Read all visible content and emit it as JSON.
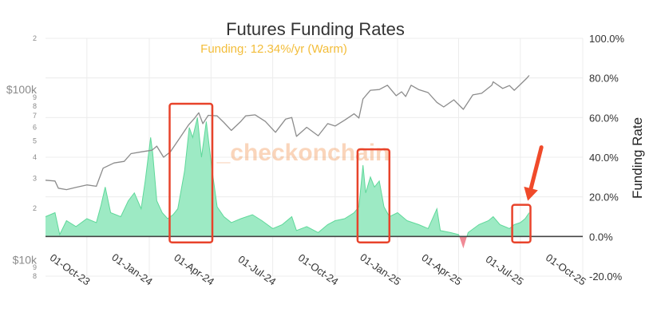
{
  "chart_data": {
    "type": "line",
    "title": "Futures Funding Rates",
    "subtitle": "Funding: 12.34%/yr (Warm)",
    "watermark": "_checkonchain",
    "y2label": "Funding Rate",
    "x_ticks": [
      "01-Oct-23",
      "01-Jan-24",
      "01-Apr-24",
      "01-Jul-24",
      "01-Oct-24",
      "01-Jan-25",
      "01-Apr-25",
      "01-Jul-25",
      "01-Oct-25"
    ],
    "xlim": [
      "2023-08-01",
      "2025-10-01"
    ],
    "y_left": {
      "scale": "log",
      "range": [
        8000,
        200000
      ],
      "major_ticks": [
        {
          "value": 100000,
          "label": "$100k"
        },
        {
          "value": 10000,
          "label": "$10k"
        }
      ],
      "minor_ticks": [
        {
          "value": 200000,
          "label": "2"
        },
        {
          "value": 90000,
          "label": "9"
        },
        {
          "value": 80000,
          "label": "8"
        },
        {
          "value": 70000,
          "label": "7"
        },
        {
          "value": 60000,
          "label": "6"
        },
        {
          "value": 50000,
          "label": "5"
        },
        {
          "value": 40000,
          "label": "4"
        },
        {
          "value": 30000,
          "label": "3"
        },
        {
          "value": 20000,
          "label": "2"
        },
        {
          "value": 9000,
          "label": "9"
        },
        {
          "value": 8000,
          "label": "8"
        }
      ]
    },
    "y_right": {
      "range": [
        -20,
        100
      ],
      "ticks": [
        {
          "value": 100,
          "label": "100.0%"
        },
        {
          "value": 80,
          "label": "80.0%"
        },
        {
          "value": 60,
          "label": "60.0%"
        },
        {
          "value": 40,
          "label": "40.0%"
        },
        {
          "value": 20,
          "label": "20.0%"
        },
        {
          "value": 0,
          "label": "0.0%"
        },
        {
          "value": -20,
          "label": "-20.0%"
        }
      ]
    },
    "series": [
      {
        "type": "line",
        "axis": "left",
        "color": "#8c8c8c",
        "points": [
          [
            "2023-08-01",
            29300
          ],
          [
            "2023-08-15",
            29000
          ],
          [
            "2023-08-20",
            26300
          ],
          [
            "2023-09-01",
            25800
          ],
          [
            "2023-09-15",
            26600
          ],
          [
            "2023-10-01",
            27500
          ],
          [
            "2023-10-15",
            27000
          ],
          [
            "2023-10-25",
            34500
          ],
          [
            "2023-11-10",
            37000
          ],
          [
            "2023-11-25",
            37800
          ],
          [
            "2023-12-05",
            42000
          ],
          [
            "2023-12-20",
            43000
          ],
          [
            "2024-01-05",
            44000
          ],
          [
            "2024-01-12",
            46500
          ],
          [
            "2024-01-22",
            40000
          ],
          [
            "2024-02-01",
            43000
          ],
          [
            "2024-02-15",
            52000
          ],
          [
            "2024-02-28",
            62000
          ],
          [
            "2024-03-08",
            68000
          ],
          [
            "2024-03-14",
            73000
          ],
          [
            "2024-03-20",
            63000
          ],
          [
            "2024-03-28",
            70500
          ],
          [
            "2024-04-10",
            70000
          ],
          [
            "2024-04-20",
            64000
          ],
          [
            "2024-05-01",
            57500
          ],
          [
            "2024-05-15",
            65000
          ],
          [
            "2024-05-22",
            70000
          ],
          [
            "2024-06-05",
            71000
          ],
          [
            "2024-06-20",
            65000
          ],
          [
            "2024-07-05",
            56000
          ],
          [
            "2024-07-20",
            67000
          ],
          [
            "2024-07-29",
            68500
          ],
          [
            "2024-08-05",
            53000
          ],
          [
            "2024-08-20",
            60000
          ],
          [
            "2024-09-06",
            53500
          ],
          [
            "2024-09-20",
            63000
          ],
          [
            "2024-10-01",
            61000
          ],
          [
            "2024-10-15",
            66000
          ],
          [
            "2024-10-29",
            72000
          ],
          [
            "2024-11-05",
            68000
          ],
          [
            "2024-11-11",
            88000
          ],
          [
            "2024-11-22",
            99000
          ],
          [
            "2024-12-05",
            100000
          ],
          [
            "2024-12-17",
            106000
          ],
          [
            "2024-12-30",
            92000
          ],
          [
            "2025-01-07",
            97000
          ],
          [
            "2025-01-13",
            91000
          ],
          [
            "2025-01-21",
            106000
          ],
          [
            "2025-02-01",
            100000
          ],
          [
            "2025-02-15",
            96000
          ],
          [
            "2025-02-28",
            84000
          ],
          [
            "2025-03-10",
            79000
          ],
          [
            "2025-03-25",
            87000
          ],
          [
            "2025-04-08",
            76500
          ],
          [
            "2025-04-22",
            93000
          ],
          [
            "2025-05-05",
            95000
          ],
          [
            "2025-05-20",
            106000
          ],
          [
            "2025-05-22",
            111000
          ],
          [
            "2025-06-05",
            101500
          ],
          [
            "2025-06-15",
            105500
          ],
          [
            "2025-06-22",
            99000
          ],
          [
            "2025-07-01",
            107000
          ],
          [
            "2025-07-10",
            116000
          ],
          [
            "2025-07-14",
            121000
          ]
        ]
      },
      {
        "type": "area",
        "axis": "right",
        "color": "#5fd89a",
        "fill": "#9deac4",
        "negative_color": "#f08a96",
        "points": [
          [
            "2023-08-01",
            10
          ],
          [
            "2023-08-15",
            12
          ],
          [
            "2023-08-22",
            1
          ],
          [
            "2023-09-01",
            8
          ],
          [
            "2023-09-15",
            5
          ],
          [
            "2023-10-01",
            9
          ],
          [
            "2023-10-15",
            7
          ],
          [
            "2023-10-22",
            16
          ],
          [
            "2023-10-28",
            25
          ],
          [
            "2023-11-05",
            12
          ],
          [
            "2023-11-20",
            10
          ],
          [
            "2023-12-01",
            18
          ],
          [
            "2023-12-10",
            22
          ],
          [
            "2023-12-20",
            14
          ],
          [
            "2023-12-26",
            28
          ],
          [
            "2024-01-03",
            50
          ],
          [
            "2024-01-06",
            42
          ],
          [
            "2024-01-12",
            18
          ],
          [
            "2024-01-20",
            12
          ],
          [
            "2024-01-28",
            9
          ],
          [
            "2024-02-05",
            11
          ],
          [
            "2024-02-12",
            14
          ],
          [
            "2024-02-22",
            33
          ],
          [
            "2024-02-29",
            55
          ],
          [
            "2024-03-05",
            50
          ],
          [
            "2024-03-12",
            60
          ],
          [
            "2024-03-18",
            40
          ],
          [
            "2024-03-25",
            58
          ],
          [
            "2024-04-02",
            35
          ],
          [
            "2024-04-10",
            15
          ],
          [
            "2024-04-20",
            10
          ],
          [
            "2024-05-01",
            7
          ],
          [
            "2024-05-15",
            9
          ],
          [
            "2024-06-01",
            11
          ],
          [
            "2024-06-15",
            8
          ],
          [
            "2024-07-01",
            4
          ],
          [
            "2024-07-15",
            6
          ],
          [
            "2024-07-29",
            10
          ],
          [
            "2024-08-05",
            3
          ],
          [
            "2024-08-20",
            5
          ],
          [
            "2024-09-06",
            2
          ],
          [
            "2024-09-20",
            6
          ],
          [
            "2024-10-01",
            8
          ],
          [
            "2024-10-15",
            9
          ],
          [
            "2024-10-29",
            12
          ],
          [
            "2024-11-05",
            15
          ],
          [
            "2024-11-11",
            36
          ],
          [
            "2024-11-15",
            22
          ],
          [
            "2024-11-22",
            30
          ],
          [
            "2024-11-28",
            25
          ],
          [
            "2024-12-05",
            28
          ],
          [
            "2024-12-12",
            15
          ],
          [
            "2024-12-20",
            10
          ],
          [
            "2025-01-01",
            12
          ],
          [
            "2025-01-15",
            8
          ],
          [
            "2025-02-01",
            6
          ],
          [
            "2025-02-15",
            4
          ],
          [
            "2025-02-28",
            14
          ],
          [
            "2025-03-05",
            3
          ],
          [
            "2025-03-20",
            2
          ],
          [
            "2025-04-01",
            1
          ],
          [
            "2025-04-08",
            -6
          ],
          [
            "2025-04-15",
            2
          ],
          [
            "2025-05-01",
            6
          ],
          [
            "2025-05-15",
            8
          ],
          [
            "2025-05-22",
            10
          ],
          [
            "2025-06-01",
            6
          ],
          [
            "2025-06-15",
            4
          ],
          [
            "2025-06-22",
            6
          ],
          [
            "2025-07-01",
            7
          ],
          [
            "2025-07-08",
            9
          ],
          [
            "2025-07-14",
            12
          ]
        ]
      }
    ],
    "annotations": [
      {
        "type": "box",
        "x0": "2024-01-31",
        "x1": "2024-04-03",
        "y0": -3,
        "y1": 67,
        "axis": "right",
        "color": "#e8432b"
      },
      {
        "type": "box",
        "x0": "2024-11-03",
        "x1": "2024-12-20",
        "y0": -3,
        "y1": 44,
        "axis": "right",
        "color": "#e8432b"
      },
      {
        "type": "box",
        "x0": "2025-06-19",
        "x1": "2025-07-16",
        "y0": -3,
        "y1": 16,
        "axis": "right",
        "color": "#e8432b"
      },
      {
        "type": "arrow",
        "from_date": "2025-08-01",
        "from_value": 45,
        "to_date": "2025-07-12",
        "to_value": 18,
        "axis": "right",
        "color": "#f04a2a"
      }
    ],
    "colors": {
      "title": "#333333",
      "subtitle": "#f3bd3a",
      "grid": "#ececec",
      "zero_line": "#444444",
      "annotation": "#e8432b",
      "watermark": "#f4a46a"
    }
  }
}
